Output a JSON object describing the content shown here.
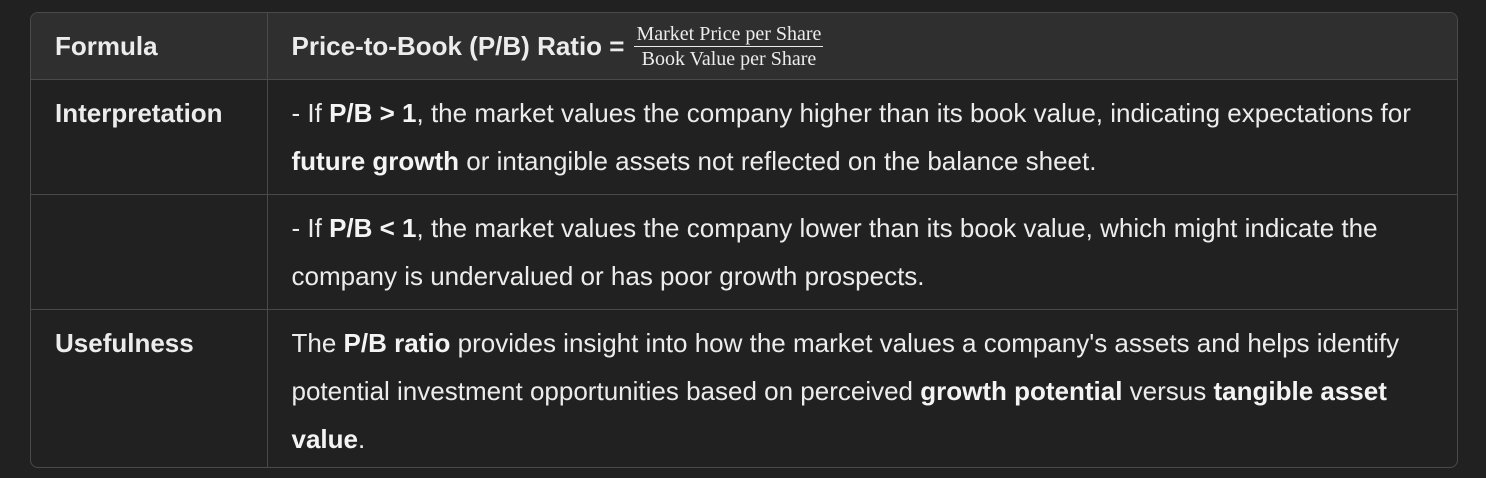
{
  "header": {
    "col1": "Formula",
    "col2_prefix": "Price-to-Book (P/B) Ratio =",
    "fraction_numerator": "Market Price per Share",
    "fraction_denominator": "Book Value per Share"
  },
  "rows": [
    {
      "label": "Interpretation",
      "segments": [
        "- If ",
        "P/B > 1",
        ", the market values the company higher than its book value, indicating expectations for ",
        "future growth",
        " or intangible assets not reflected on the balance sheet."
      ]
    },
    {
      "label": "",
      "segments": [
        "- If ",
        "P/B < 1",
        ", the market values the company lower than its book value, which might indicate the company is undervalued or has poor growth prospects."
      ]
    },
    {
      "label": "Usefulness",
      "segments": [
        "The ",
        "P/B ratio",
        " provides insight into how the market values a company's assets and helps identify potential investment opportunities based on perceived ",
        "growth potential",
        " versus ",
        "tangible asset value",
        "."
      ]
    }
  ]
}
